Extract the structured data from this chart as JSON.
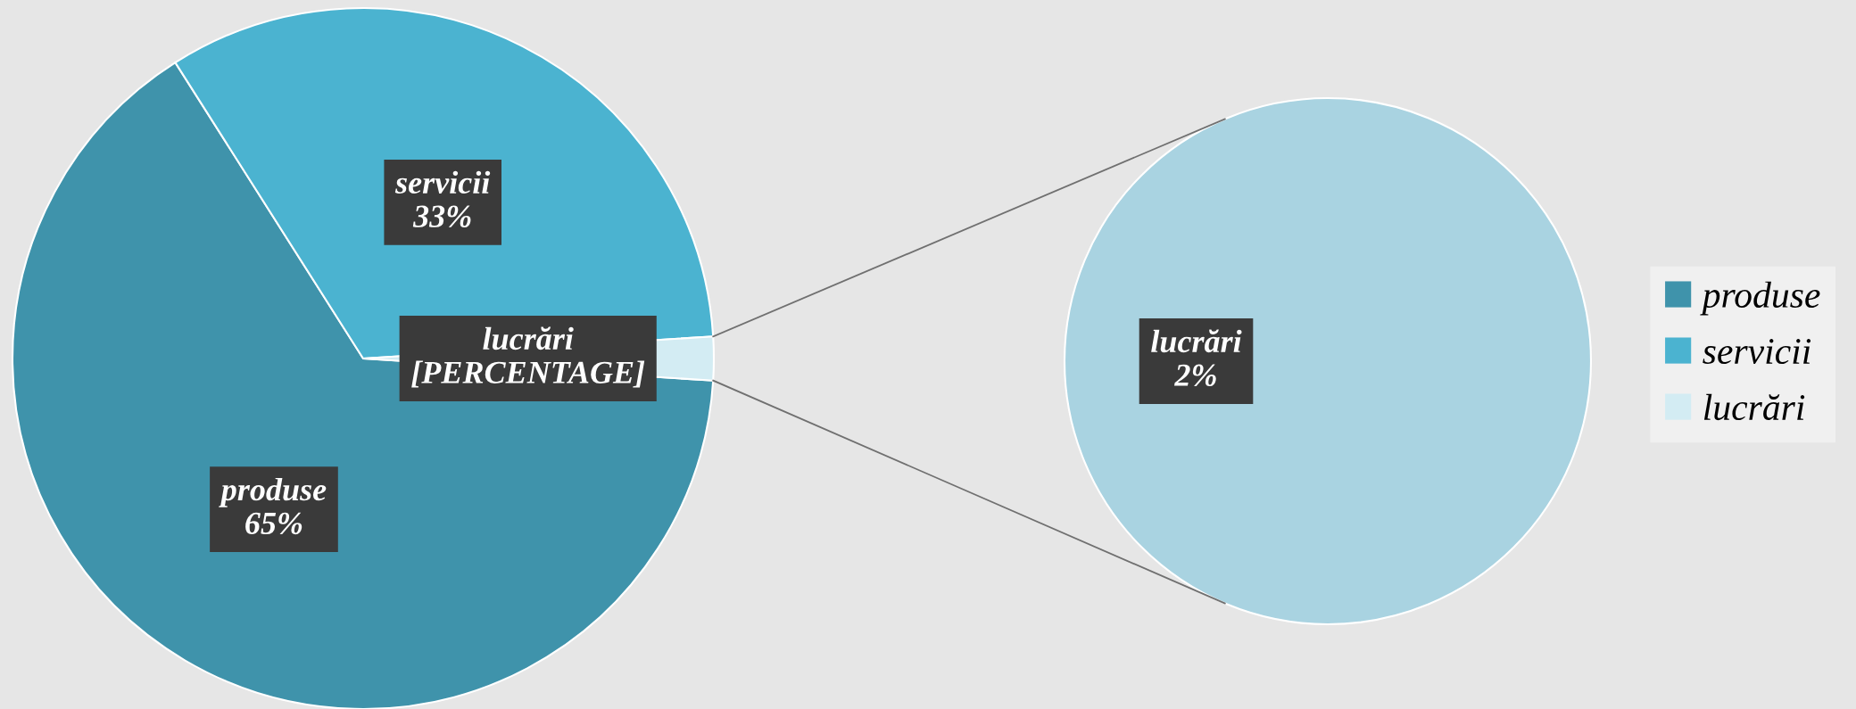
{
  "chart_data": [
    {
      "type": "pie",
      "categories": [
        "produse",
        "servicii",
        "lucrări"
      ],
      "values": [
        65,
        33,
        2
      ],
      "colors": [
        "#3f93ab",
        "#4bb3d0",
        "#d3ecf3"
      ],
      "value_labels": [
        "65%",
        "33%",
        "[PERCENTAGE]"
      ],
      "legend": "right"
    },
    {
      "type": "pie",
      "categories": [
        "lucrări"
      ],
      "values": [
        2
      ],
      "colors": [
        "#a9d3e1"
      ],
      "value_labels": [
        "2%"
      ]
    }
  ]
}
